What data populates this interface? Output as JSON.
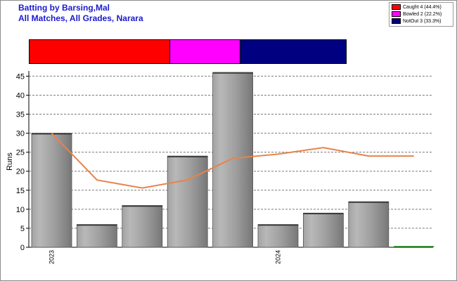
{
  "title": "Batting by Barsing,Mal",
  "subtitle": "All Matches, All Grades, Narara",
  "legend": [
    {
      "label": "Caught 4 (44.4%)",
      "color": "#ff0000"
    },
    {
      "label": "Bowled 2 (22.2%)",
      "color": "#ff00ff"
    },
    {
      "label": "NotOut 3 (33.3%)",
      "color": "#000080"
    }
  ],
  "dismissals": [
    {
      "name": "Caught",
      "count": 4,
      "color": "#ff0000"
    },
    {
      "name": "Bowled",
      "count": 2,
      "color": "#ff00ff"
    },
    {
      "name": "NotOut",
      "count": 3,
      "color": "#000080"
    }
  ],
  "chart_data": {
    "type": "bar",
    "ylabel": "Runs",
    "ylim": [
      0,
      46
    ],
    "yticks": [
      0,
      5,
      10,
      15,
      20,
      25,
      30,
      35,
      40,
      45
    ],
    "grid": true,
    "categories": [
      "",
      "",
      "",
      "",
      "",
      "",
      "",
      "",
      ""
    ],
    "x_tick_labels": [
      {
        "index": 0,
        "label": "2023"
      },
      {
        "index": 5,
        "label": "2024"
      }
    ],
    "values": [
      30,
      6,
      11,
      24,
      46,
      6,
      9,
      12,
      0
    ],
    "average_line": [
      30,
      17.7,
      15.6,
      17.7,
      23.4,
      24.5,
      26.2,
      24,
      24
    ],
    "bar_color": "#a8a8a8",
    "line_color": "#e8834a"
  }
}
